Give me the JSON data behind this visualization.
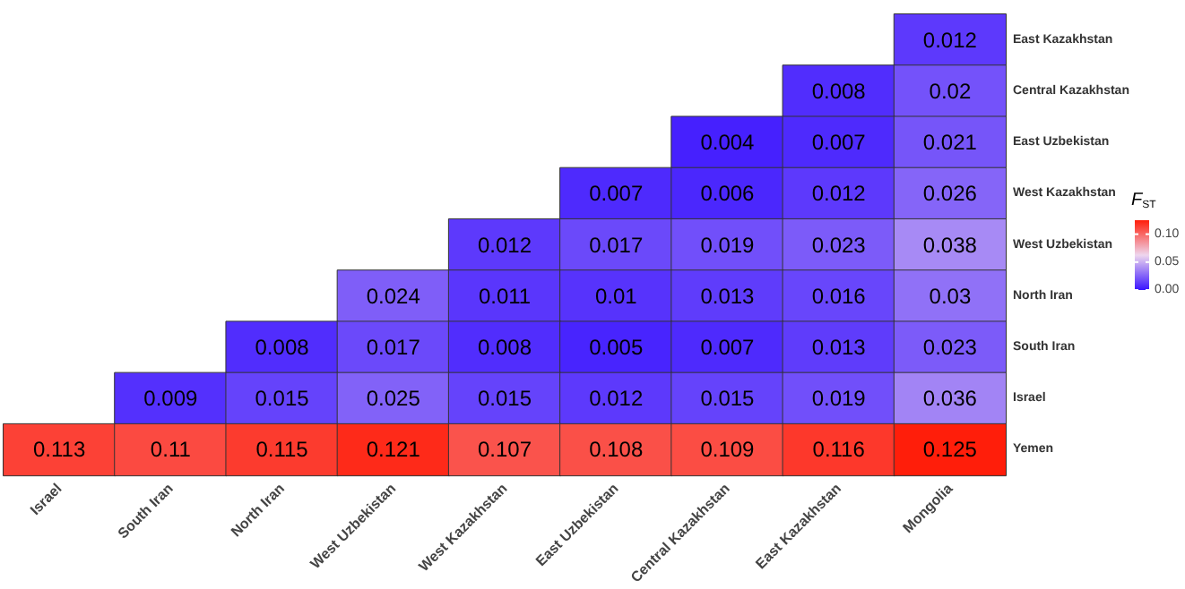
{
  "chart_data": {
    "type": "heatmap",
    "clabel": "F$_{ST}$",
    "categories": [
      "Israel",
      "South Iran",
      "North Iran",
      "West Uzbekistan",
      "West Kazakhstan",
      "East Uzbekistan",
      "Central Kazakhstan",
      "East Kazakhstan",
      "Mongolia"
    ],
    "y_categories": [
      "East Kazakhstan",
      "Central Kazakhstan",
      "East Uzbekistan",
      "West Kazakhstan",
      "West Uzbekistan",
      "North Iran",
      "South Iran",
      "Israel",
      "Yemen"
    ],
    "cells": [
      [
        null,
        null,
        null,
        null,
        null,
        null,
        null,
        null,
        0.012
      ],
      [
        null,
        null,
        null,
        null,
        null,
        null,
        null,
        0.008,
        0.02
      ],
      [
        null,
        null,
        null,
        null,
        null,
        null,
        0.004,
        0.007,
        0.021
      ],
      [
        null,
        null,
        null,
        null,
        null,
        0.007,
        0.006,
        0.012,
        0.026
      ],
      [
        null,
        null,
        null,
        null,
        0.012,
        0.017,
        0.019,
        0.023,
        0.038
      ],
      [
        null,
        null,
        null,
        0.024,
        0.011,
        0.01,
        0.013,
        0.016,
        0.03
      ],
      [
        null,
        null,
        0.008,
        0.017,
        0.008,
        0.005,
        0.007,
        0.013,
        0.023
      ],
      [
        null,
        0.009,
        0.015,
        0.025,
        0.015,
        0.012,
        0.015,
        0.019,
        0.036
      ],
      [
        0.113,
        0.11,
        0.115,
        0.121,
        0.107,
        0.108,
        0.109,
        0.116,
        0.125
      ]
    ],
    "data_labels": true,
    "clim": [
      0,
      0.125
    ],
    "cticks": [
      {
        "value": 0,
        "label": "0.00"
      },
      {
        "value": 0.05,
        "label": "0.05"
      },
      {
        "value": 0.1,
        "label": "0.10"
      }
    ],
    "colors": [
      "#3a14ff",
      "#eed6ee",
      "#ff1e0a"
    ]
  }
}
